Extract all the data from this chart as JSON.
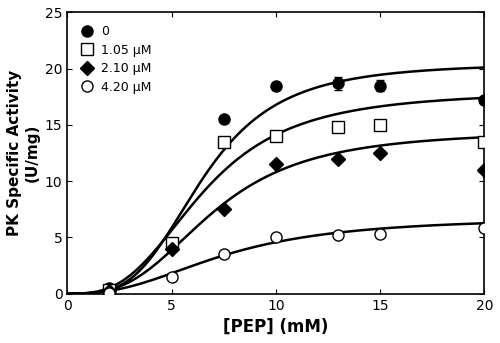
{
  "title": "",
  "xlabel": "[PEP] (mM)",
  "ylabel": "PK Specific Activity\n(U/mg)",
  "xlim": [
    0,
    20
  ],
  "ylim": [
    0,
    25
  ],
  "xticks": [
    0,
    5,
    10,
    15,
    20
  ],
  "yticks": [
    0,
    5,
    10,
    15,
    20,
    25
  ],
  "series": [
    {
      "label": "0",
      "marker": "o",
      "fillstyle": "full",
      "x_data": [
        2.0,
        5.0,
        7.5,
        10.0,
        13.0,
        15.0,
        20.0
      ],
      "y_data": [
        0.5,
        4.5,
        15.5,
        18.5,
        18.7,
        18.5,
        17.2
      ],
      "yerr": [
        null,
        null,
        null,
        null,
        0.6,
        0.5,
        null
      ],
      "Vmax": 20.5,
      "Km": 6.5,
      "n": 3.5
    },
    {
      "label": "1.05 μM",
      "marker": "s",
      "fillstyle": "none",
      "x_data": [
        2.0,
        5.0,
        7.5,
        10.0,
        13.0,
        15.0,
        20.0
      ],
      "y_data": [
        0.3,
        4.5,
        13.5,
        14.0,
        14.8,
        15.0,
        13.5
      ],
      "yerr": [
        null,
        null,
        null,
        null,
        null,
        null,
        null
      ],
      "Vmax": 18.0,
      "Km": 6.5,
      "n": 3.0
    },
    {
      "label": "2.10 μM",
      "marker": "D",
      "fillstyle": "full",
      "x_data": [
        2.0,
        5.0,
        7.5,
        10.0,
        13.0,
        15.0,
        20.0
      ],
      "y_data": [
        0.2,
        4.0,
        7.5,
        11.5,
        12.0,
        12.5,
        11.0
      ],
      "yerr": [
        null,
        null,
        null,
        null,
        null,
        null,
        null
      ],
      "Vmax": 14.5,
      "Km": 7.0,
      "n": 3.0
    },
    {
      "label": "4.20 μM",
      "marker": "o",
      "fillstyle": "none",
      "x_data": [
        2.0,
        5.0,
        7.5,
        10.0,
        13.0,
        15.0,
        20.0
      ],
      "y_data": [
        0.05,
        1.5,
        3.5,
        5.0,
        5.2,
        5.3,
        5.8
      ],
      "yerr": [
        null,
        null,
        null,
        null,
        null,
        null,
        null
      ],
      "Vmax": 6.8,
      "Km": 7.5,
      "n": 2.5
    }
  ],
  "figsize": [
    5.0,
    3.43
  ],
  "dpi": 100
}
